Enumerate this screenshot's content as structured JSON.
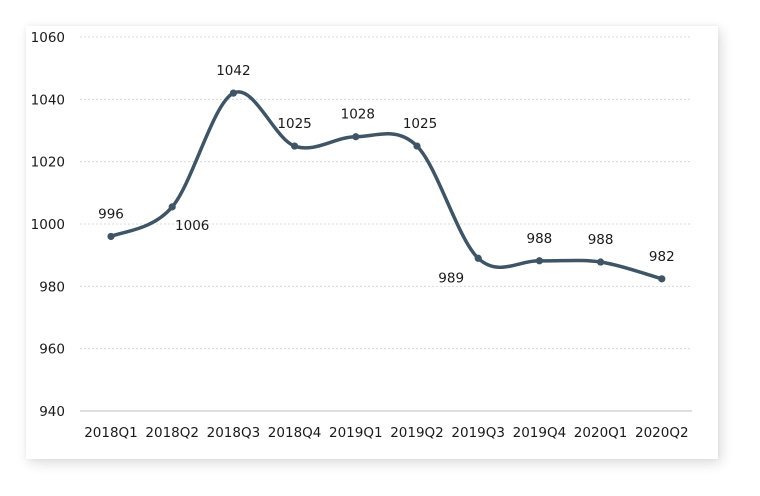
{
  "chart_data": {
    "type": "line",
    "smooth": true,
    "categories": [
      "2018Q1",
      "2018Q2",
      "2018Q3",
      "2018Q4",
      "2019Q1",
      "2019Q2",
      "2019Q3",
      "2019Q4",
      "2020Q1",
      "2020Q2"
    ],
    "values": [
      996,
      1005.5,
      1042,
      1025,
      1028,
      1025,
      989,
      988.2,
      987.8,
      982.4
    ],
    "data_labels": [
      "996",
      "1006",
      "1042",
      "1025",
      "1028",
      "1025",
      "989",
      "988",
      "988",
      "982"
    ],
    "ylim": [
      940,
      1060
    ],
    "yticks": [
      940,
      960,
      980,
      1000,
      1020,
      1040,
      1060
    ],
    "gridlines": true,
    "legend": "none",
    "title": "",
    "xlabel": "",
    "ylabel": "",
    "colors": {
      "line": "#3f5566",
      "grid": "#d9d9d9",
      "axis": "#bfbfbf",
      "text": "#1a1a1a"
    }
  }
}
